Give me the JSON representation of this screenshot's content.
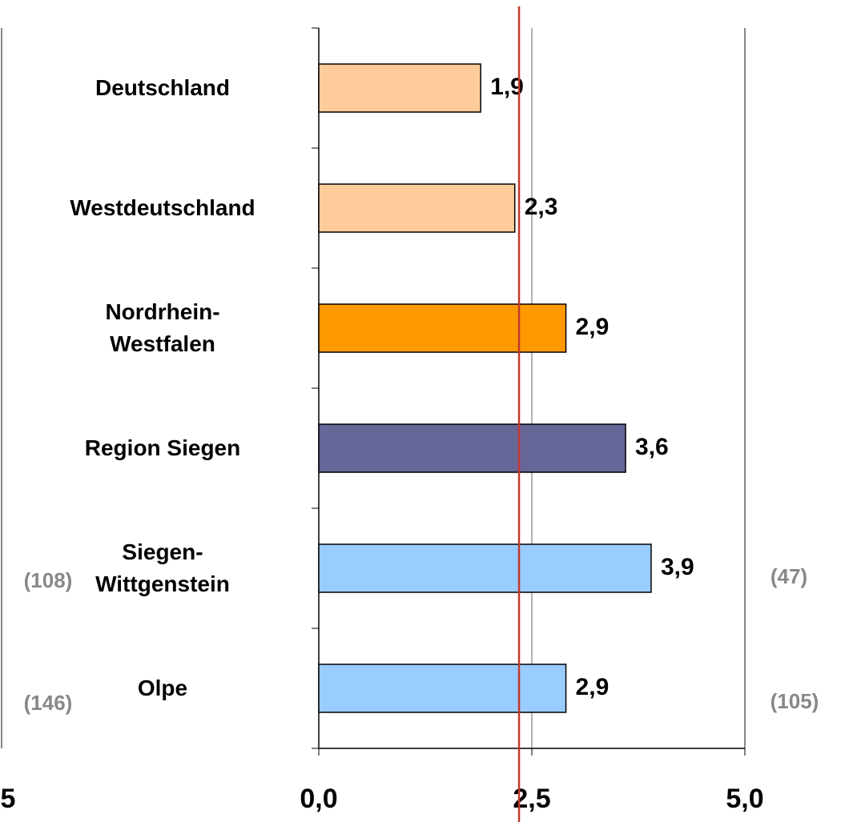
{
  "chart_data": {
    "type": "bar",
    "orientation": "horizontal",
    "categories": [
      "Deutschland",
      "Westdeutschland",
      "Nordrhein-\nWestfalen",
      "Region Siegen",
      "Siegen-\nWittgenstein",
      "Olpe"
    ],
    "values": [
      1.9,
      2.3,
      2.9,
      3.6,
      3.9,
      2.9
    ],
    "value_labels": [
      "1,9",
      "2,3",
      "2,9",
      "3,6",
      "3,9",
      "2,9"
    ],
    "colors": [
      "#ffcc99",
      "#ffcc99",
      "#ff9900",
      "#666699",
      "#99ccff",
      "#99ccff"
    ],
    "xlim": [
      0,
      5
    ],
    "xticks": [
      {
        "value": 0,
        "label": "0,0"
      },
      {
        "value": 2.5,
        "label": "2,5"
      },
      {
        "value": 5,
        "label": "5,0"
      }
    ],
    "grid": true,
    "reference_line": {
      "value": 2.35,
      "color": "#c0392b"
    },
    "annotations": [
      "(108)",
      "(146)",
      "(47)",
      "(105)",
      "5"
    ]
  }
}
